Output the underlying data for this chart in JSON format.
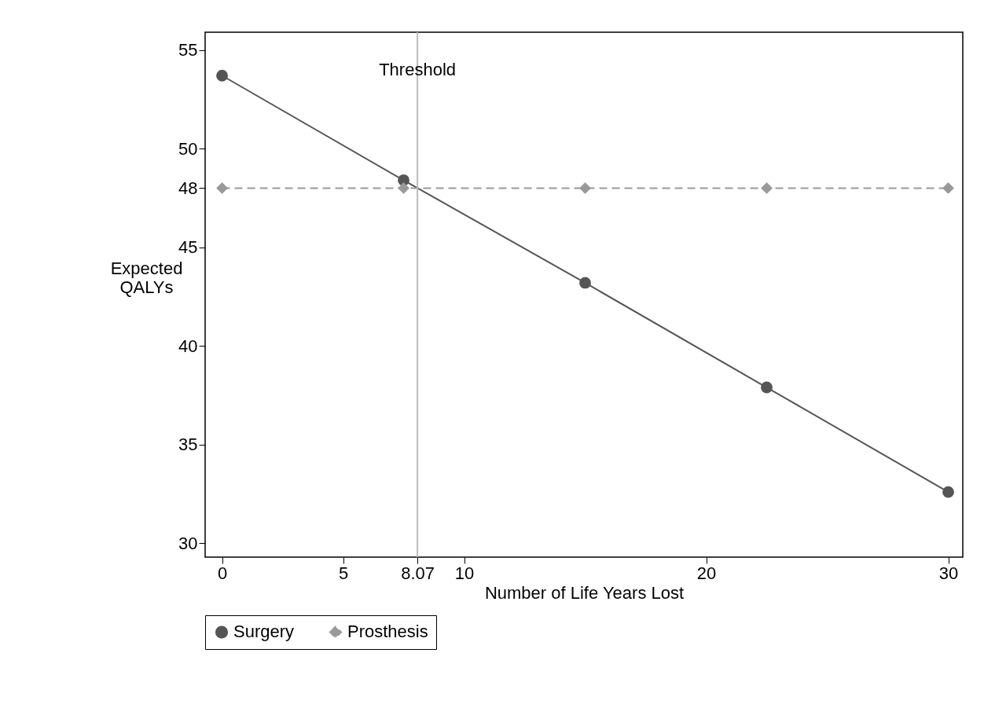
{
  "chart_data": {
    "type": "line",
    "xlabel": "Number of Life Years Lost",
    "ylabel": "Expected QALYs",
    "x": [
      0,
      7.5,
      15,
      22.5,
      30
    ],
    "series": [
      {
        "name": "Surgery",
        "color": "#555555",
        "values": [
          53.7,
          48.4,
          43.2,
          37.9,
          32.6
        ],
        "marker": "circle",
        "line_style": "solid"
      },
      {
        "name": "Prosthesis",
        "color": "#999999",
        "values": [
          48,
          48,
          48,
          48,
          48
        ],
        "marker": "diamond",
        "line_style": "dashed"
      }
    ],
    "xlim": [
      -0.7,
      30.6
    ],
    "ylim": [
      29.3,
      55.9
    ],
    "xticks": [
      0,
      5,
      8.07,
      10,
      20,
      30
    ],
    "yticks": [
      30,
      35,
      40,
      45,
      48,
      50,
      55
    ],
    "ref_lines": [
      {
        "axis": "x",
        "value": 8.07,
        "label": "Threshold",
        "color": "#bbbbbb"
      }
    ],
    "grid": false,
    "legend": "bottom"
  }
}
